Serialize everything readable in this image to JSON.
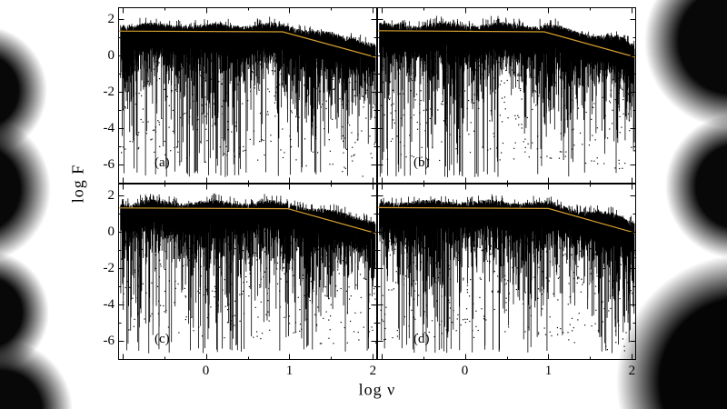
{
  "figure": {
    "ylabel": "log F",
    "xlabel": "log ν"
  },
  "chart_data": [
    {
      "type": "scatter",
      "label": "(a)",
      "xlabel": "log ν",
      "ylabel": "log F",
      "xlim": [
        -1.05,
        2.05
      ],
      "ylim": [
        -7.05,
        2.65
      ],
      "x_ticks": [
        0,
        1,
        2
      ],
      "y_ticks": [
        2,
        0,
        -2,
        -4,
        -6
      ],
      "x_data_range": [
        -1.02,
        2.03
      ],
      "point_color": "#000000",
      "fit_color": "#d6a02f",
      "fit_line": [
        [
          -1.05,
          1.34
        ],
        [
          0.92,
          1.3
        ],
        [
          2.05,
          -0.12
        ]
      ],
      "upper_envelope": [
        [
          -1.02,
          1.5
        ],
        [
          -0.8,
          1.62
        ],
        [
          -0.55,
          1.55
        ],
        [
          -0.3,
          1.6
        ],
        [
          0.0,
          1.52
        ],
        [
          0.3,
          1.6
        ],
        [
          0.6,
          1.55
        ],
        [
          0.9,
          1.55
        ],
        [
          1.1,
          1.42
        ],
        [
          1.35,
          1.18
        ],
        [
          1.6,
          0.95
        ],
        [
          1.8,
          0.85
        ],
        [
          2.03,
          0.5
        ]
      ],
      "n_columns": 1100,
      "n_scatter_points": 430,
      "seed": 7,
      "description": "Dense noisy spectrum: black quasi-continuous band near log F ~ 1.5 flattening then declining, with downward spikes to log F ~ -6 and an orange broken power-law fit line."
    },
    {
      "type": "scatter",
      "label": "(b)",
      "xlabel": "log ν",
      "ylabel": "log F",
      "xlim": [
        -1.05,
        2.05
      ],
      "ylim": [
        -7.05,
        2.65
      ],
      "x_ticks": [
        0,
        1,
        2
      ],
      "y_ticks": [
        2,
        0,
        -2,
        -4,
        -6
      ],
      "x_data_range": [
        -1.02,
        2.03
      ],
      "point_color": "#000000",
      "fit_color": "#d6a02f",
      "fit_line": [
        [
          -1.05,
          1.36
        ],
        [
          0.95,
          1.3
        ],
        [
          2.05,
          -0.1
        ]
      ],
      "upper_envelope": [
        [
          -1.02,
          1.55
        ],
        [
          -0.75,
          1.6
        ],
        [
          -0.45,
          1.55
        ],
        [
          -0.15,
          1.62
        ],
        [
          0.15,
          1.55
        ],
        [
          0.45,
          1.6
        ],
        [
          0.75,
          1.55
        ],
        [
          1.0,
          1.5
        ],
        [
          1.2,
          1.35
        ],
        [
          1.45,
          1.1
        ],
        [
          1.7,
          0.92
        ],
        [
          1.9,
          0.8
        ],
        [
          2.03,
          0.48
        ]
      ],
      "n_columns": 1100,
      "n_scatter_points": 430,
      "seed": 23,
      "description": "Same style spectrum as (a), slightly different noise realization."
    },
    {
      "type": "scatter",
      "label": "(c)",
      "xlabel": "log ν",
      "ylabel": "log F",
      "xlim": [
        -1.05,
        2.05
      ],
      "ylim": [
        -7.05,
        2.65
      ],
      "x_ticks": [
        0,
        1,
        2
      ],
      "y_ticks": [
        2,
        0,
        -2,
        -4,
        -6
      ],
      "x_data_range": [
        -1.02,
        2.03
      ],
      "point_color": "#000000",
      "fit_color": "#d6a02f",
      "fit_line": [
        [
          -1.05,
          1.31
        ],
        [
          0.98,
          1.27
        ],
        [
          2.05,
          -0.1
        ]
      ],
      "upper_envelope": [
        [
          -1.02,
          1.45
        ],
        [
          -0.7,
          1.55
        ],
        [
          -0.4,
          1.5
        ],
        [
          0.0,
          1.55
        ],
        [
          0.4,
          1.5
        ],
        [
          0.8,
          1.5
        ],
        [
          1.05,
          1.4
        ],
        [
          1.3,
          1.15
        ],
        [
          1.6,
          0.92
        ],
        [
          1.85,
          0.75
        ],
        [
          2.03,
          0.4
        ]
      ],
      "n_columns": 1100,
      "n_scatter_points": 430,
      "seed": 51,
      "description": "Same style spectrum, lower-left panel; deep vertical spikes concentrated at low frequency."
    },
    {
      "type": "scatter",
      "label": "(d)",
      "xlabel": "log ν",
      "ylabel": "log F",
      "xlim": [
        -1.05,
        2.05
      ],
      "ylim": [
        -7.05,
        2.65
      ],
      "x_ticks": [
        0,
        1,
        2
      ],
      "y_ticks": [
        2,
        0,
        -2,
        -4,
        -6
      ],
      "x_data_range": [
        -1.02,
        2.03
      ],
      "point_color": "#000000",
      "fit_color": "#d6a02f",
      "fit_line": [
        [
          -1.05,
          1.33
        ],
        [
          1.0,
          1.28
        ],
        [
          2.05,
          -0.08
        ]
      ],
      "upper_envelope": [
        [
          -1.02,
          1.48
        ],
        [
          -0.72,
          1.58
        ],
        [
          -0.42,
          1.52
        ],
        [
          -0.05,
          1.58
        ],
        [
          0.35,
          1.52
        ],
        [
          0.75,
          1.52
        ],
        [
          1.05,
          1.42
        ],
        [
          1.3,
          1.18
        ],
        [
          1.55,
          0.95
        ],
        [
          1.82,
          0.8
        ],
        [
          2.03,
          0.45
        ]
      ],
      "n_columns": 1100,
      "n_scatter_points": 430,
      "seed": 87,
      "description": "Same style spectrum, lower-right panel."
    }
  ]
}
